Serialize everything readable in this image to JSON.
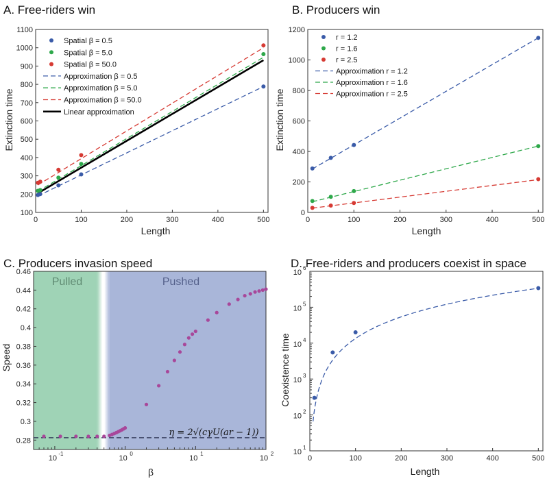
{
  "chart_data": [
    {
      "id": "A",
      "type": "line",
      "title": "A. Free-riders win",
      "xlabel": "Length",
      "ylabel": "Extinction time",
      "xlim": [
        0,
        510
      ],
      "ylim": [
        100,
        1100
      ],
      "xticks": [
        0,
        100,
        200,
        300,
        400,
        500
      ],
      "yticks": [
        100,
        200,
        300,
        400,
        500,
        600,
        700,
        800,
        900,
        1000,
        1100
      ],
      "scatter_series": [
        {
          "name": "Spatial β = 0.5",
          "color": "#3a5ba8",
          "x": [
            5,
            10,
            50,
            100,
            500
          ],
          "y": [
            195,
            200,
            248,
            308,
            788
          ]
        },
        {
          "name": "Spatial β = 5.0",
          "color": "#2ea84a",
          "x": [
            5,
            10,
            50,
            100,
            500
          ],
          "y": [
            218,
            222,
            290,
            365,
            965
          ]
        },
        {
          "name": "Spatial β = 50.0",
          "color": "#d63a33",
          "x": [
            5,
            10,
            50,
            100,
            500
          ],
          "y": [
            262,
            268,
            333,
            413,
            1013
          ]
        }
      ],
      "line_series": [
        {
          "name": "Approximation β = 0.5",
          "color": "#3a5ba8",
          "dash": true,
          "x": [
            5,
            500
          ],
          "y": [
            190,
            788
          ]
        },
        {
          "name": "Approximation β = 5.0",
          "color": "#2ea84a",
          "dash": true,
          "x": [
            5,
            500
          ],
          "y": [
            215,
            948
          ]
        },
        {
          "name": "Approximation β = 50.0",
          "color": "#d63a33",
          "dash": true,
          "x": [
            5,
            500
          ],
          "y": [
            250,
            1000
          ]
        },
        {
          "name": "Linear approximation",
          "color": "#000000",
          "dash": false,
          "x": [
            5,
            500
          ],
          "y": [
            205,
            932
          ]
        }
      ]
    },
    {
      "id": "B",
      "type": "line",
      "title": "B. Producers win",
      "xlabel": "Length",
      "ylabel": "Extinction time",
      "xlim": [
        0,
        510
      ],
      "ylim": [
        0,
        1200
      ],
      "xticks": [
        0,
        100,
        200,
        300,
        400,
        500
      ],
      "yticks": [
        0,
        200,
        400,
        600,
        800,
        1000,
        1200
      ],
      "scatter_series": [
        {
          "name": "r = 1.2",
          "color": "#3a5ba8",
          "x": [
            10,
            50,
            100,
            500
          ],
          "y": [
            288,
            358,
            442,
            1145
          ]
        },
        {
          "name": "r = 1.6",
          "color": "#2ea84a",
          "x": [
            10,
            50,
            100,
            500
          ],
          "y": [
            75,
            102,
            140,
            435
          ]
        },
        {
          "name": "r = 2.5",
          "color": "#d63a33",
          "x": [
            10,
            50,
            100,
            500
          ],
          "y": [
            30,
            45,
            62,
            218
          ]
        }
      ],
      "line_series": [
        {
          "name": "Approximation r = 1.2",
          "color": "#3a5ba8",
          "dash": true,
          "x": [
            10,
            500
          ],
          "y": [
            285,
            1145
          ]
        },
        {
          "name": "Approximation r = 1.6",
          "color": "#2ea84a",
          "dash": true,
          "x": [
            10,
            500
          ],
          "y": [
            70,
            435
          ]
        },
        {
          "name": "Approximation r = 2.5",
          "color": "#d63a33",
          "dash": true,
          "x": [
            10,
            500
          ],
          "y": [
            28,
            215
          ]
        }
      ]
    },
    {
      "id": "C",
      "type": "scatter",
      "title": "C. Producers invasion speed",
      "xlabel": "β",
      "ylabel": "Speed",
      "xscale": "log",
      "xlim": [
        0.05,
        100
      ],
      "ylim": [
        0.27,
        0.46
      ],
      "xtick_exponents": [
        -1,
        0,
        1,
        2
      ],
      "yticks": [
        0.28,
        0.3,
        0.32,
        0.34,
        0.36,
        0.38,
        0.4,
        0.42,
        0.44,
        0.46
      ],
      "region_labels": [
        "Pulled",
        "Pushed"
      ],
      "pulled_end": 0.4,
      "pushed_start": 0.6,
      "point_color": "#a8479a",
      "points": {
        "x": [
          0.07,
          0.12,
          0.2,
          0.3,
          0.4,
          0.5,
          0.6,
          0.65,
          0.7,
          0.75,
          0.8,
          0.85,
          0.9,
          0.95,
          1.0,
          2,
          3,
          4,
          5,
          6,
          7,
          8,
          9,
          10,
          15,
          20,
          30,
          40,
          50,
          60,
          70,
          80,
          90,
          100
        ],
        "y": [
          0.284,
          0.284,
          0.284,
          0.284,
          0.284,
          0.284,
          0.285,
          0.286,
          0.287,
          0.288,
          0.289,
          0.29,
          0.291,
          0.292,
          0.293,
          0.318,
          0.338,
          0.353,
          0.365,
          0.374,
          0.382,
          0.389,
          0.393,
          0.396,
          0.408,
          0.416,
          0.425,
          0.43,
          0.434,
          0.436,
          0.438,
          0.439,
          0.44,
          0.441
        ]
      },
      "reference_line": {
        "y": 0.2825,
        "label": "η = 2√(cγU(ar − 1))"
      }
    },
    {
      "id": "D",
      "type": "line",
      "title": "D. Free-riders and producers coexist in space",
      "xlabel": "Length",
      "ylabel": "Coexistence time",
      "yscale": "log",
      "xlim": [
        0,
        510
      ],
      "ylim_exponents": [
        1,
        6
      ],
      "xticks": [
        0,
        100,
        200,
        300,
        400,
        500
      ],
      "ytick_exponents": [
        1,
        2,
        3,
        4,
        5,
        6
      ],
      "color": "#3a5ba8",
      "points": {
        "x": [
          10,
          50,
          100,
          500
        ],
        "y": [
          300,
          5500,
          20000,
          340000
        ]
      },
      "fit_curve": {
        "exponent": 2,
        "coef": 1.35
      }
    }
  ]
}
